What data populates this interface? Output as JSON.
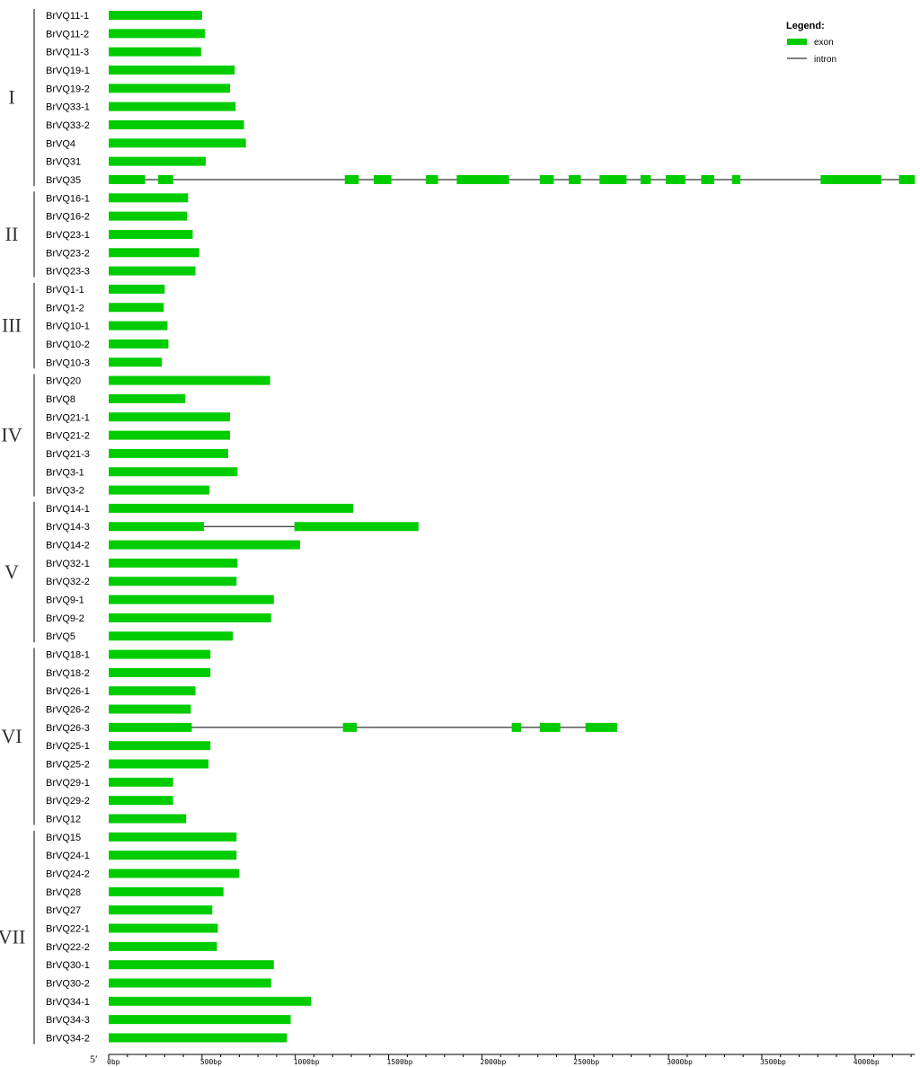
{
  "chart_data": {
    "type": "gene-structure",
    "axis": {
      "start_label": "5′",
      "max_bp": 4320,
      "ticks": [
        {
          "value": 0,
          "label": "0bp"
        },
        {
          "value": 500,
          "label": "500bp"
        },
        {
          "value": 1000,
          "label": "1000bp"
        },
        {
          "value": 1500,
          "label": "1500bp"
        },
        {
          "value": 2000,
          "label": "2000bp"
        },
        {
          "value": 2500,
          "label": "2500bp"
        },
        {
          "value": 3000,
          "label": "3000bp"
        },
        {
          "value": 3500,
          "label": "3500bp"
        },
        {
          "value": 4000,
          "label": "4000bp"
        }
      ]
    },
    "legend": {
      "title": "Legend:",
      "exon_label": "exon",
      "intron_label": "intron",
      "exon_color": "#00cc00",
      "intron_color": "#000000"
    },
    "groups": [
      {
        "name": "I",
        "genes": [
          {
            "name": "BrVQ11-1",
            "exons": [
              [
                0,
                500
              ]
            ]
          },
          {
            "name": "BrVQ11-2",
            "exons": [
              [
                0,
                515
              ]
            ]
          },
          {
            "name": "BrVQ11-3",
            "exons": [
              [
                0,
                495
              ]
            ]
          },
          {
            "name": "BrVQ19-1",
            "exons": [
              [
                0,
                675
              ]
            ]
          },
          {
            "name": "BrVQ19-2",
            "exons": [
              [
                0,
                650
              ]
            ]
          },
          {
            "name": "BrVQ33-1",
            "exons": [
              [
                0,
                680
              ]
            ]
          },
          {
            "name": "BrVQ33-2",
            "exons": [
              [
                0,
                725
              ]
            ]
          },
          {
            "name": "BrVQ4",
            "exons": [
              [
                0,
                735
              ]
            ]
          },
          {
            "name": "BrVQ31",
            "exons": [
              [
                0,
                520
              ]
            ]
          },
          {
            "name": "BrVQ35",
            "exons": [
              [
                0,
                195
              ],
              [
                265,
                345
              ],
              [
                1265,
                1340
              ],
              [
                1420,
                1515
              ],
              [
                1700,
                1765
              ],
              [
                1865,
                2145
              ],
              [
                2310,
                2385
              ],
              [
                2465,
                2530
              ],
              [
                2630,
                2775
              ],
              [
                2850,
                2905
              ],
              [
                2985,
                3090
              ],
              [
                3175,
                3245
              ],
              [
                3340,
                3385
              ],
              [
                3815,
                4140
              ],
              [
                4235,
                4320
              ]
            ]
          }
        ]
      },
      {
        "name": "II",
        "genes": [
          {
            "name": "BrVQ16-1",
            "exons": [
              [
                0,
                425
              ]
            ]
          },
          {
            "name": "BrVQ16-2",
            "exons": [
              [
                0,
                420
              ]
            ]
          },
          {
            "name": "BrVQ23-1",
            "exons": [
              [
                0,
                450
              ]
            ]
          },
          {
            "name": "BrVQ23-2",
            "exons": [
              [
                0,
                485
              ]
            ]
          },
          {
            "name": "BrVQ23-3",
            "exons": [
              [
                0,
                465
              ]
            ]
          }
        ]
      },
      {
        "name": "III",
        "genes": [
          {
            "name": "BrVQ1-1",
            "exons": [
              [
                0,
                300
              ]
            ]
          },
          {
            "name": "BrVQ1-2",
            "exons": [
              [
                0,
                295
              ]
            ]
          },
          {
            "name": "BrVQ10-1",
            "exons": [
              [
                0,
                315
              ]
            ]
          },
          {
            "name": "BrVQ10-2",
            "exons": [
              [
                0,
                320
              ]
            ]
          },
          {
            "name": "BrVQ10-3",
            "exons": [
              [
                0,
                285
              ]
            ]
          }
        ]
      },
      {
        "name": "IV",
        "genes": [
          {
            "name": "BrVQ20",
            "exons": [
              [
                0,
                865
              ]
            ]
          },
          {
            "name": "BrVQ8",
            "exons": [
              [
                0,
                410
              ]
            ]
          },
          {
            "name": "BrVQ21-1",
            "exons": [
              [
                0,
                650
              ]
            ]
          },
          {
            "name": "BrVQ21-2",
            "exons": [
              [
                0,
                650
              ]
            ]
          },
          {
            "name": "BrVQ21-3",
            "exons": [
              [
                0,
                640
              ]
            ]
          },
          {
            "name": "BrVQ3-1",
            "exons": [
              [
                0,
                690
              ]
            ]
          },
          {
            "name": "BrVQ3-2",
            "exons": [
              [
                0,
                540
              ]
            ]
          }
        ]
      },
      {
        "name": "V",
        "genes": [
          {
            "name": "BrVQ14-1",
            "exons": [
              [
                0,
                1310
              ]
            ]
          },
          {
            "name": "BrVQ14-3",
            "exons": [
              [
                0,
                510
              ],
              [
                995,
                1660
              ]
            ]
          },
          {
            "name": "BrVQ14-2",
            "exons": [
              [
                0,
                1025
              ]
            ]
          },
          {
            "name": "BrVQ32-1",
            "exons": [
              [
                0,
                690
              ]
            ]
          },
          {
            "name": "BrVQ32-2",
            "exons": [
              [
                0,
                685
              ]
            ]
          },
          {
            "name": "BrVQ9-1",
            "exons": [
              [
                0,
                885
              ]
            ]
          },
          {
            "name": "BrVQ9-2",
            "exons": [
              [
                0,
                870
              ]
            ]
          },
          {
            "name": "BrVQ5",
            "exons": [
              [
                0,
                665
              ]
            ]
          }
        ]
      },
      {
        "name": "VI",
        "genes": [
          {
            "name": "BrVQ18-1",
            "exons": [
              [
                0,
                545
              ]
            ]
          },
          {
            "name": "BrVQ18-2",
            "exons": [
              [
                0,
                545
              ]
            ]
          },
          {
            "name": "BrVQ26-1",
            "exons": [
              [
                0,
                465
              ]
            ]
          },
          {
            "name": "BrVQ26-2",
            "exons": [
              [
                0,
                440
              ]
            ]
          },
          {
            "name": "BrVQ26-3",
            "exons": [
              [
                0,
                445
              ],
              [
                1255,
                1330
              ],
              [
                2160,
                2210
              ],
              [
                2310,
                2420
              ],
              [
                2555,
                2725
              ]
            ]
          },
          {
            "name": "BrVQ25-1",
            "exons": [
              [
                0,
                545
              ]
            ]
          },
          {
            "name": "BrVQ25-2",
            "exons": [
              [
                0,
                535
              ]
            ]
          },
          {
            "name": "BrVQ29-1",
            "exons": [
              [
                0,
                345
              ]
            ]
          },
          {
            "name": "BrVQ29-2",
            "exons": [
              [
                0,
                345
              ]
            ]
          },
          {
            "name": "BrVQ12",
            "exons": [
              [
                0,
                415
              ]
            ]
          }
        ]
      },
      {
        "name": "VII",
        "genes": [
          {
            "name": "BrVQ15",
            "exons": [
              [
                0,
                685
              ]
            ]
          },
          {
            "name": "BrVQ24-1",
            "exons": [
              [
                0,
                685
              ]
            ]
          },
          {
            "name": "BrVQ24-2",
            "exons": [
              [
                0,
                700
              ]
            ]
          },
          {
            "name": "BrVQ28",
            "exons": [
              [
                0,
                615
              ]
            ]
          },
          {
            "name": "BrVQ27",
            "exons": [
              [
                0,
                555
              ]
            ]
          },
          {
            "name": "BrVQ22-1",
            "exons": [
              [
                0,
                585
              ]
            ]
          },
          {
            "name": "BrVQ22-2",
            "exons": [
              [
                0,
                580
              ]
            ]
          },
          {
            "name": "BrVQ30-1",
            "exons": [
              [
                0,
                885
              ]
            ]
          },
          {
            "name": "BrVQ30-2",
            "exons": [
              [
                0,
                870
              ]
            ]
          },
          {
            "name": "BrVQ34-1",
            "exons": [
              [
                0,
                1085
              ]
            ]
          },
          {
            "name": "BrVQ34-3",
            "exons": [
              [
                0,
                975
              ]
            ]
          },
          {
            "name": "BrVQ34-2",
            "exons": [
              [
                0,
                955
              ]
            ]
          }
        ]
      }
    ]
  }
}
